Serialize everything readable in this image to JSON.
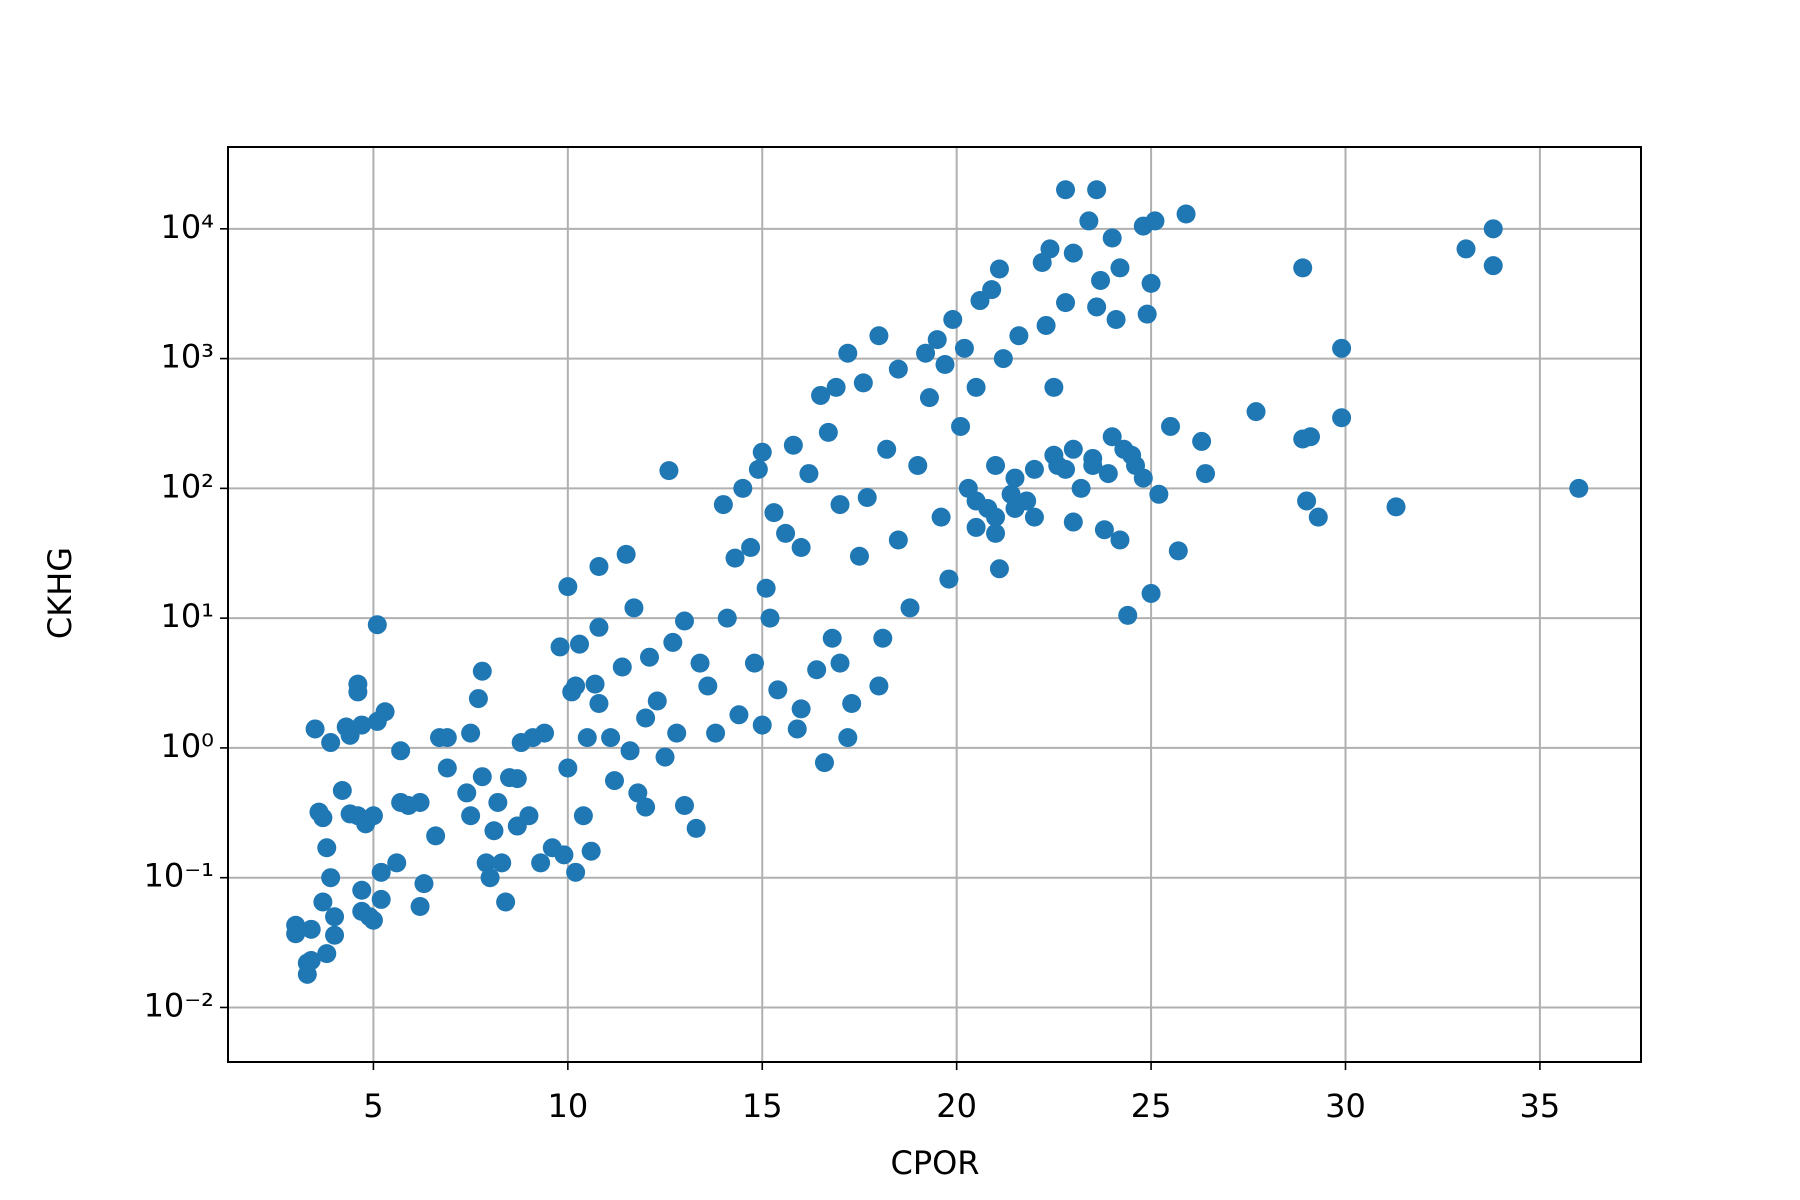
{
  "chart_data": {
    "type": "scatter",
    "x_label": "CPOR",
    "y_label": "CKHG",
    "yscale": "log",
    "grid": true,
    "color": "#1f77b4",
    "xlim": [
      1.26,
      37.6
    ],
    "xticks": [
      5,
      10,
      15,
      20,
      25,
      30,
      35
    ],
    "ylim": [
      0.0038,
      42700
    ],
    "yticks": [
      {
        "value": 0.01,
        "label": "10⁻²"
      },
      {
        "value": 0.1,
        "label": "10⁻¹"
      },
      {
        "value": 1,
        "label": "10⁰"
      },
      {
        "value": 10,
        "label": "10¹"
      },
      {
        "value": 100,
        "label": "10²"
      },
      {
        "value": 1000,
        "label": "10³"
      },
      {
        "value": 10000,
        "label": "10⁴"
      }
    ],
    "x": [
      3.0,
      3.0,
      3.3,
      3.3,
      3.4,
      3.4,
      3.5,
      3.6,
      3.7,
      3.7,
      3.8,
      3.8,
      3.9,
      3.9,
      4.0,
      4.0,
      4.2,
      4.3,
      4.4,
      4.4,
      4.6,
      4.6,
      4.6,
      4.7,
      4.7,
      4.7,
      4.8,
      4.9,
      5.0,
      5.0,
      5.1,
      5.1,
      5.2,
      5.2,
      5.3,
      5.6,
      5.7,
      5.7,
      5.9,
      6.2,
      6.2,
      6.3,
      6.6,
      6.7,
      6.9,
      6.9,
      7.4,
      7.5,
      7.5,
      7.7,
      7.8,
      7.8,
      7.9,
      8.0,
      8.1,
      8.2,
      8.3,
      8.4,
      8.5,
      8.7,
      8.7,
      8.8,
      9.0,
      9.1,
      9.3,
      9.4,
      9.6,
      9.8,
      9.9,
      10.0,
      10.0,
      10.1,
      10.2,
      10.2,
      10.3,
      10.4,
      10.5,
      10.6,
      10.7,
      10.8,
      10.8,
      10.8,
      11.1,
      11.2,
      11.4,
      11.5,
      11.6,
      11.7,
      11.8,
      12.0,
      12.0,
      12.1,
      12.3,
      12.5,
      12.6,
      12.7,
      12.8,
      13.0,
      13.0,
      13.3,
      13.4,
      13.6,
      13.8,
      14.0,
      14.1,
      14.3,
      14.4,
      14.5,
      14.7,
      14.8,
      14.9,
      15.0,
      15.0,
      15.1,
      15.2,
      15.3,
      15.4,
      15.6,
      15.8,
      15.9,
      16.0,
      16.0,
      16.2,
      16.4,
      16.5,
      16.6,
      16.7,
      16.8,
      16.9,
      17.0,
      17.0,
      17.2,
      17.2,
      17.3,
      17.5,
      17.6,
      17.7,
      18.0,
      18.0,
      18.1,
      18.2,
      18.5,
      18.5,
      18.8,
      19.0,
      19.2,
      19.3,
      19.5,
      19.6,
      19.7,
      19.8,
      19.9,
      20.1,
      20.2,
      20.3,
      20.5,
      20.6,
      20.8,
      20.9,
      21.0,
      21.0,
      21.1,
      21.1,
      21.2,
      21.4,
      21.6,
      21.8,
      22.0,
      22.2,
      22.3,
      22.4,
      22.5,
      22.6,
      22.8,
      22.8,
      23.0,
      23.2,
      23.4,
      23.6,
      23.6,
      23.7,
      23.9,
      24.0,
      24.1,
      24.2,
      24.3,
      24.4,
      24.6,
      24.8,
      24.9,
      25.0,
      25.0,
      25.1,
      25.2,
      25.5,
      25.7,
      25.9,
      26.3,
      26.4,
      27.7,
      28.9,
      28.9,
      29.0,
      29.1,
      29.3,
      29.9,
      29.9,
      31.3,
      33.1,
      33.8,
      33.8,
      36.0,
      20.5,
      21.5,
      22.5,
      23.0,
      23.5,
      24.0,
      24.5,
      22.0,
      21.0,
      20.5,
      23.0,
      23.8,
      24.2,
      23.5,
      24.8,
      22.8,
      21.5
    ],
    "values": [
      0.043,
      0.037,
      0.022,
      0.018,
      0.04,
      0.023,
      1.4,
      0.32,
      0.29,
      0.065,
      0.17,
      0.026,
      1.1,
      0.1,
      0.05,
      0.036,
      0.47,
      1.45,
      1.25,
      0.31,
      3.1,
      2.7,
      0.3,
      1.5,
      0.08,
      0.055,
      0.26,
      0.05,
      0.3,
      0.047,
      8.9,
      1.6,
      0.11,
      0.068,
      1.9,
      0.13,
      0.38,
      0.95,
      0.36,
      0.38,
      0.06,
      0.09,
      0.21,
      1.2,
      0.7,
      1.2,
      0.45,
      0.3,
      1.3,
      2.4,
      3.9,
      0.6,
      0.13,
      0.1,
      0.23,
      0.38,
      0.13,
      0.065,
      0.59,
      0.25,
      0.58,
      1.1,
      0.3,
      1.2,
      0.13,
      1.3,
      0.17,
      6.0,
      0.15,
      0.7,
      17.5,
      2.7,
      0.11,
      3.0,
      6.3,
      0.3,
      1.2,
      0.16,
      3.1,
      2.2,
      8.5,
      25,
      1.2,
      0.56,
      4.2,
      31,
      0.95,
      12,
      0.45,
      0.35,
      1.7,
      5,
      2.3,
      0.85,
      137,
      6.5,
      1.3,
      0.36,
      9.5,
      0.24,
      4.5,
      3,
      1.3,
      75,
      10,
      29,
      1.8,
      100,
      35,
      4.5,
      140,
      190,
      1.5,
      17,
      10,
      65,
      2.8,
      45,
      215,
      1.4,
      2,
      35,
      130,
      4,
      520,
      0.77,
      270,
      7,
      600,
      4.5,
      75,
      1.2,
      1100,
      2.2,
      30,
      650,
      85,
      1500,
      3,
      7,
      200,
      830,
      40,
      12,
      150,
      1100,
      500,
      1400,
      60,
      900,
      20,
      2000,
      300,
      1200,
      100,
      600,
      2800,
      70,
      3400,
      45,
      150,
      4900,
      24,
      1000,
      90,
      1500,
      80,
      140,
      5500,
      1800,
      7000,
      600,
      150,
      20000,
      2700,
      6500,
      100,
      11500,
      20000,
      2500,
      4000,
      130,
      8500,
      2000,
      5000,
      200,
      10.5,
      150,
      10500,
      2200,
      15.5,
      3800,
      11500,
      90,
      300,
      33,
      13000,
      230,
      130,
      390,
      240,
      5000,
      80,
      250,
      60,
      1200,
      350,
      72,
      7000,
      10000,
      5200,
      100,
      50,
      120,
      180,
      200,
      150,
      250,
      180,
      60,
      60,
      80,
      55,
      48,
      40,
      170,
      120,
      140,
      70
    ]
  }
}
